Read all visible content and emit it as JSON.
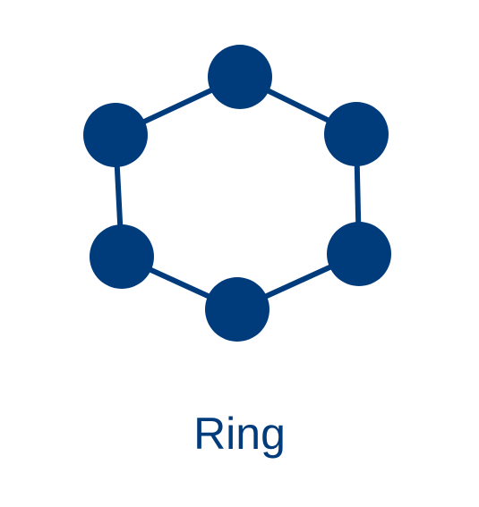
{
  "diagram": {
    "caption": "Ring",
    "node_color": "#003b7c",
    "edge_color": "#003b7c",
    "node_count": 6,
    "topology": "ring"
  }
}
